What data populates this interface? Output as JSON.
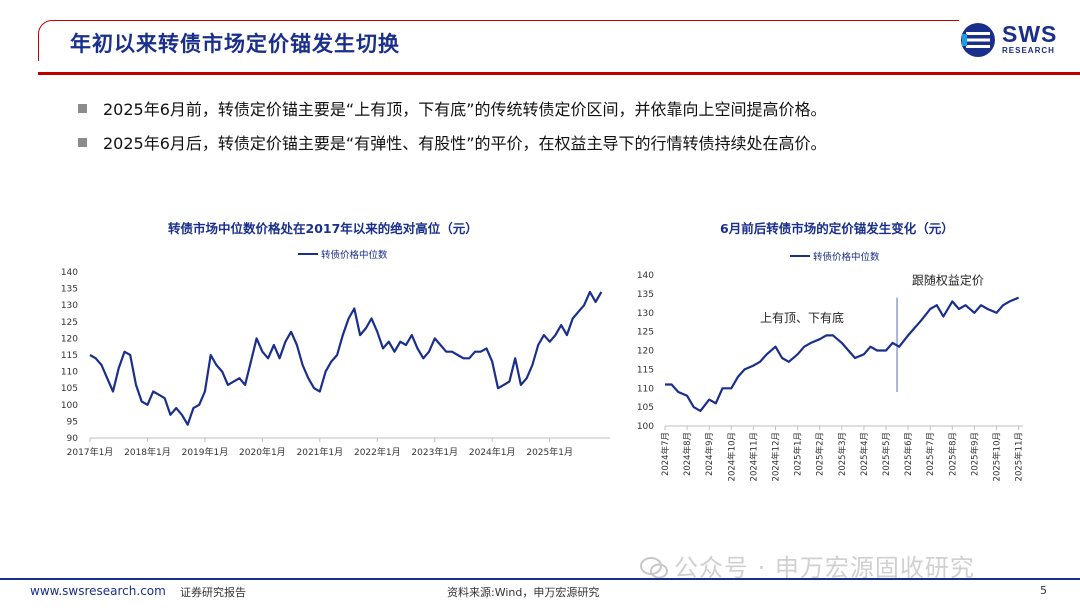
{
  "header": {
    "title": "年初以来转债市场定价锚发生切换"
  },
  "logo": {
    "name": "SWS",
    "sub": "RESEARCH"
  },
  "bullets": [
    "2025年6月前，转债定价锚主要是“上有顶，下有底”的传统转债定价区间，并依靠向上空间提高价格。",
    "2025年6月后，转债定价锚主要是“有弹性、有股性”的平价，在权益主导下的行情转债持续处在高价。"
  ],
  "footer": {
    "website": "www.swsresearch.com",
    "report_type": "证券研究报告",
    "source": "资料来源:Wind，申万宏源研究",
    "page": "5"
  },
  "watermark": "公众号 · 申万宏源固收研究",
  "colors": {
    "brand": "#1a2f8c",
    "accent": "#c00000",
    "line": "#1a2f8c"
  },
  "chart_data": [
    {
      "type": "line",
      "title": "转债市场中位数价格处在2017年以来的绝对高位（元）",
      "legend": "转债价格中位数",
      "x_labels": [
        "2017年1月",
        "2018年1月",
        "2019年1月",
        "2020年1月",
        "2021年1月",
        "2022年1月",
        "2023年1月",
        "2024年1月",
        "2025年1月"
      ],
      "y_ticks": [
        90,
        95,
        100,
        105,
        110,
        115,
        120,
        125,
        130,
        135,
        140
      ],
      "ylim": [
        90,
        140
      ],
      "x": [
        2017.0,
        2017.1,
        2017.2,
        2017.3,
        2017.4,
        2017.5,
        2017.6,
        2017.7,
        2017.8,
        2017.9,
        2018.0,
        2018.1,
        2018.2,
        2018.3,
        2018.4,
        2018.5,
        2018.6,
        2018.7,
        2018.8,
        2018.9,
        2019.0,
        2019.1,
        2019.2,
        2019.3,
        2019.4,
        2019.5,
        2019.6,
        2019.7,
        2019.8,
        2019.9,
        2020.0,
        2020.1,
        2020.2,
        2020.3,
        2020.4,
        2020.5,
        2020.6,
        2020.7,
        2020.8,
        2020.9,
        2021.0,
        2021.1,
        2021.2,
        2021.3,
        2021.4,
        2021.5,
        2021.6,
        2021.7,
        2021.8,
        2021.9,
        2022.0,
        2022.1,
        2022.2,
        2022.3,
        2022.4,
        2022.5,
        2022.6,
        2022.7,
        2022.8,
        2022.9,
        2023.0,
        2023.1,
        2023.2,
        2023.3,
        2023.4,
        2023.5,
        2023.6,
        2023.7,
        2023.8,
        2023.9,
        2024.0,
        2024.1,
        2024.2,
        2024.3,
        2024.4,
        2024.5,
        2024.6,
        2024.7,
        2024.8,
        2024.9,
        2025.0,
        2025.1,
        2025.2,
        2025.3,
        2025.4,
        2025.5,
        2025.6,
        2025.7,
        2025.8,
        2025.9
      ],
      "values": [
        115,
        114,
        112,
        108,
        104,
        111,
        116,
        115,
        106,
        101,
        100,
        104,
        103,
        102,
        97,
        99,
        97,
        94,
        99,
        100,
        104,
        115,
        112,
        110,
        106,
        107,
        108,
        106,
        113,
        120,
        116,
        114,
        118,
        114,
        119,
        122,
        118,
        112,
        108,
        105,
        104,
        110,
        113,
        115,
        121,
        126,
        129,
        121,
        123,
        126,
        122,
        117,
        119,
        116,
        119,
        118,
        121,
        117,
        114,
        116,
        120,
        118,
        116,
        116,
        115,
        114,
        114,
        116,
        116,
        117,
        113,
        105,
        106,
        107,
        114,
        106,
        108,
        112,
        118,
        121,
        119,
        121,
        124,
        121,
        126,
        128,
        130,
        134,
        131,
        134
      ]
    },
    {
      "type": "line",
      "title": "6月前后转债市场的定价锚发生变化（元）",
      "legend": "转债价格中位数",
      "x_labels": [
        "2024年7月",
        "2024年8月",
        "2024年9月",
        "2024年10月",
        "2024年11月",
        "2024年12月",
        "2025年1月",
        "2025年2月",
        "2025年3月",
        "2025年4月",
        "2025年5月",
        "2025年6月",
        "2025年7月",
        "2025年8月",
        "2025年9月",
        "2025年10月",
        "2025年11月"
      ],
      "y_ticks": [
        100,
        105,
        110,
        115,
        120,
        125,
        130,
        135,
        140
      ],
      "ylim": [
        100,
        140
      ],
      "x": [
        0,
        0.3,
        0.6,
        1.0,
        1.3,
        1.6,
        2.0,
        2.3,
        2.6,
        3.0,
        3.3,
        3.6,
        4.0,
        4.3,
        4.6,
        5.0,
        5.3,
        5.6,
        6.0,
        6.3,
        6.6,
        7.0,
        7.3,
        7.6,
        8.0,
        8.3,
        8.6,
        9.0,
        9.3,
        9.6,
        10.0,
        10.3,
        10.6,
        11.0,
        11.3,
        11.6,
        12.0,
        12.3,
        12.6,
        13.0,
        13.3,
        13.6,
        14.0,
        14.3,
        14.6,
        15.0,
        15.3,
        15.6,
        16.0
      ],
      "values": [
        111,
        111,
        109,
        108,
        105,
        104,
        107,
        106,
        110,
        110,
        113,
        115,
        116,
        117,
        119,
        121,
        118,
        117,
        119,
        121,
        122,
        123,
        124,
        124,
        122,
        120,
        118,
        119,
        121,
        120,
        120,
        122,
        121,
        124,
        126,
        128,
        131,
        132,
        129,
        133,
        131,
        132,
        130,
        132,
        131,
        130,
        132,
        133,
        134
      ],
      "annotations": [
        "上有顶、下有底",
        "跟随权益定价"
      ],
      "split_x": 10.5
    }
  ]
}
